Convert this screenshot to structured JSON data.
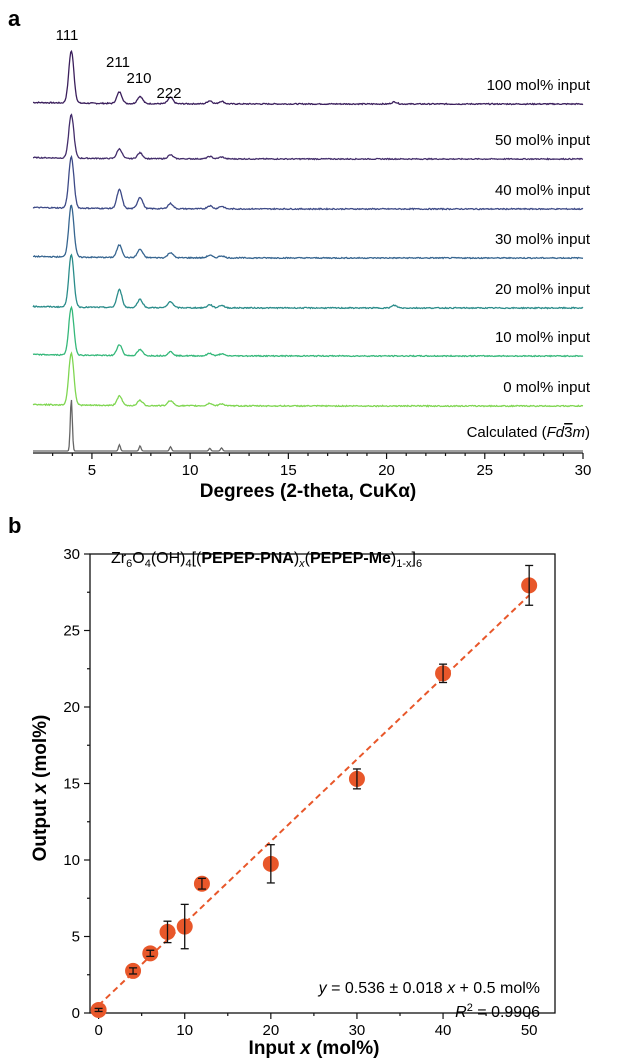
{
  "chart_data": [
    {
      "panel": "a",
      "type": "line",
      "xlabel": "Degrees (2-theta, CuKα)",
      "xlim": [
        2,
        30
      ],
      "xticks": [
        5,
        10,
        15,
        20,
        25,
        30
      ],
      "peak_labels": [
        "111",
        "211",
        "210",
        "222"
      ],
      "peak_positions": [
        3.95,
        6.4,
        7.45,
        9.0
      ],
      "series": [
        {
          "name": "100 mol% input",
          "color": "#3b1f5c",
          "peaks": [
            [
              3.95,
              1.0
            ],
            [
              6.4,
              0.22
            ],
            [
              7.45,
              0.14
            ],
            [
              9.0,
              0.12
            ],
            [
              11.0,
              0.06
            ],
            [
              11.6,
              0.05
            ],
            [
              20.4,
              0.04
            ]
          ]
        },
        {
          "name": "50 mol% input",
          "color": "#432d6b",
          "peaks": [
            [
              3.95,
              0.9
            ],
            [
              6.4,
              0.2
            ],
            [
              7.45,
              0.12
            ],
            [
              9.0,
              0.08
            ],
            [
              11.0,
              0.05
            ],
            [
              11.6,
              0.04
            ]
          ]
        },
        {
          "name": "40 mol% input",
          "color": "#3d4a87",
          "peaks": [
            [
              3.95,
              0.98
            ],
            [
              6.4,
              0.36
            ],
            [
              7.45,
              0.22
            ],
            [
              9.0,
              0.1
            ],
            [
              11.0,
              0.06
            ],
            [
              11.6,
              0.05
            ]
          ]
        },
        {
          "name": "30 mol% input",
          "color": "#366590",
          "peaks": [
            [
              3.95,
              1.0
            ],
            [
              6.4,
              0.24
            ],
            [
              7.45,
              0.16
            ],
            [
              9.0,
              0.1
            ],
            [
              11.0,
              0.05
            ],
            [
              11.6,
              0.04
            ]
          ]
        },
        {
          "name": "20 mol% input",
          "color": "#2a8c8a",
          "peaks": [
            [
              3.95,
              1.0
            ],
            [
              6.4,
              0.34
            ],
            [
              7.45,
              0.16
            ],
            [
              9.0,
              0.12
            ],
            [
              11.0,
              0.06
            ],
            [
              11.6,
              0.05
            ],
            [
              20.4,
              0.05
            ]
          ]
        },
        {
          "name": "10 mol% input",
          "color": "#35b87a",
          "peaks": [
            [
              3.95,
              0.95
            ],
            [
              6.4,
              0.22
            ],
            [
              7.45,
              0.12
            ],
            [
              9.0,
              0.08
            ],
            [
              11.0,
              0.05
            ],
            [
              11.6,
              0.04
            ]
          ]
        },
        {
          "name": "0 mol% input",
          "color": "#7fd651",
          "peaks": [
            [
              3.95,
              1.0
            ],
            [
              6.4,
              0.18
            ],
            [
              7.45,
              0.1
            ],
            [
              9.0,
              0.1
            ],
            [
              11.0,
              0.05
            ],
            [
              11.6,
              0.04
            ]
          ]
        },
        {
          "name": "Calculated (Fd3̄m)",
          "label_prefix": "Calculated (",
          "label_italic": "Fd",
          "label_bar": "3",
          "label_italic2": "m",
          "label_suffix": ")",
          "color": "#666666",
          "peaks": [
            [
              3.95,
              1.0
            ],
            [
              6.4,
              0.12
            ],
            [
              7.45,
              0.1
            ],
            [
              9.0,
              0.08
            ],
            [
              11.0,
              0.05
            ],
            [
              11.6,
              0.06
            ]
          ]
        }
      ]
    },
    {
      "panel": "b",
      "type": "scatter",
      "xlabel_prefix": "Input ",
      "xlabel_var": "x",
      "xlabel_suffix": " (mol%)",
      "ylabel_prefix": "Output ",
      "ylabel_var": "x",
      "ylabel_suffix": " (mol%)",
      "xlim": [
        -1,
        53
      ],
      "ylim": [
        0,
        30
      ],
      "xticks": [
        0,
        10,
        20,
        30,
        40,
        50
      ],
      "yticks": [
        0,
        5,
        10,
        15,
        20,
        25,
        30
      ],
      "points": [
        {
          "x": 0,
          "y": 0.2,
          "err": 0.1
        },
        {
          "x": 4,
          "y": 2.75,
          "err": 0.2
        },
        {
          "x": 6,
          "y": 3.9,
          "err": 0.2
        },
        {
          "x": 8,
          "y": 5.3,
          "err": 0.7
        },
        {
          "x": 10,
          "y": 5.65,
          "err": 1.45
        },
        {
          "x": 12,
          "y": 8.45,
          "err": 0.35
        },
        {
          "x": 20,
          "y": 9.75,
          "err": 1.25
        },
        {
          "x": 30,
          "y": 15.3,
          "err": 0.65
        },
        {
          "x": 40,
          "y": 22.2,
          "err": 0.6
        },
        {
          "x": 50,
          "y": 27.95,
          "err": 1.3
        }
      ],
      "point_color": "#e8572a",
      "fit": {
        "slope": 0.536,
        "intercept": 0.5,
        "color": "#e8572a"
      },
      "formula": {
        "parts": [
          "Zr",
          "6",
          "O",
          "4",
          "(OH)",
          "4",
          "[(",
          "PEPEP-PNA",
          ")",
          "x",
          "(",
          "PEPEP-Me",
          ")",
          "1-x",
          "]",
          "6"
        ]
      },
      "equation": {
        "y": "y",
        "text": " = 0.536 ± 0.018 ",
        "x": "x",
        "tail": " + 0.5 mol%"
      },
      "r2": {
        "R": "R",
        "sup": "2",
        "value": " = 0.9906"
      }
    }
  ],
  "panel_letters": [
    "a",
    "b"
  ]
}
